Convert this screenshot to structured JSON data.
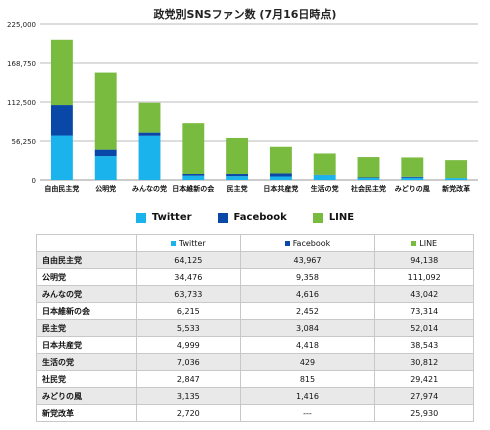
{
  "title": "政党別SNSファン数 (7月16日時点)",
  "colors": {
    "twitter": "#1ab3ec",
    "facebook": "#0a48a8",
    "line": "#78bb3e"
  },
  "legend": {
    "twitter": "Twitter",
    "facebook": "Facebook",
    "line": "LINE"
  },
  "chart_data": {
    "type": "bar",
    "stacked": true,
    "title": "政党別SNSファン数 (7月16日時点)",
    "categories": [
      "自由民主党",
      "公明党",
      "みんなの党",
      "日本維新の会",
      "民主党",
      "日本共産党",
      "生活の党",
      "社会民主党",
      "みどりの風",
      "新党改革"
    ],
    "series": [
      {
        "name": "Twitter",
        "color": "#1ab3ec",
        "values": [
          64125,
          34476,
          63733,
          6215,
          5533,
          4999,
          7036,
          2847,
          3135,
          2720
        ]
      },
      {
        "name": "Facebook",
        "color": "#0a48a8",
        "values": [
          43967,
          9358,
          4616,
          2452,
          3084,
          4418,
          429,
          815,
          1416,
          0
        ]
      },
      {
        "name": "LINE",
        "color": "#78bb3e",
        "values": [
          94138,
          111092,
          43042,
          73314,
          52014,
          38543,
          30812,
          29421,
          27974,
          25930
        ]
      }
    ],
    "yticks": [
      "225,000",
      "168,750",
      "112,500",
      "56,250",
      "0"
    ],
    "ylim": [
      0,
      225000
    ],
    "grid": true,
    "legend_position": "bottom"
  },
  "table": {
    "headers": [
      "Twitter",
      "Facebook",
      "LINE"
    ],
    "rows": [
      {
        "party": "自由民主党",
        "twitter": "64,125",
        "facebook": "43,967",
        "line": "94,138"
      },
      {
        "party": "公明党",
        "twitter": "34,476",
        "facebook": "9,358",
        "line": "111,092"
      },
      {
        "party": "みんなの党",
        "twitter": "63,733",
        "facebook": "4,616",
        "line": "43,042"
      },
      {
        "party": "日本維新の会",
        "twitter": "6,215",
        "facebook": "2,452",
        "line": "73,314"
      },
      {
        "party": "民主党",
        "twitter": "5,533",
        "facebook": "3,084",
        "line": "52,014"
      },
      {
        "party": "日本共産党",
        "twitter": "4,999",
        "facebook": "4,418",
        "line": "38,543"
      },
      {
        "party": "生活の党",
        "twitter": "7,036",
        "facebook": "429",
        "line": "30,812"
      },
      {
        "party": "社民党",
        "twitter": "2,847",
        "facebook": "815",
        "line": "29,421"
      },
      {
        "party": "みどりの風",
        "twitter": "3,135",
        "facebook": "1,416",
        "line": "27,974"
      },
      {
        "party": "新党改革",
        "twitter": "2,720",
        "facebook": "---",
        "line": "25,930"
      }
    ]
  }
}
